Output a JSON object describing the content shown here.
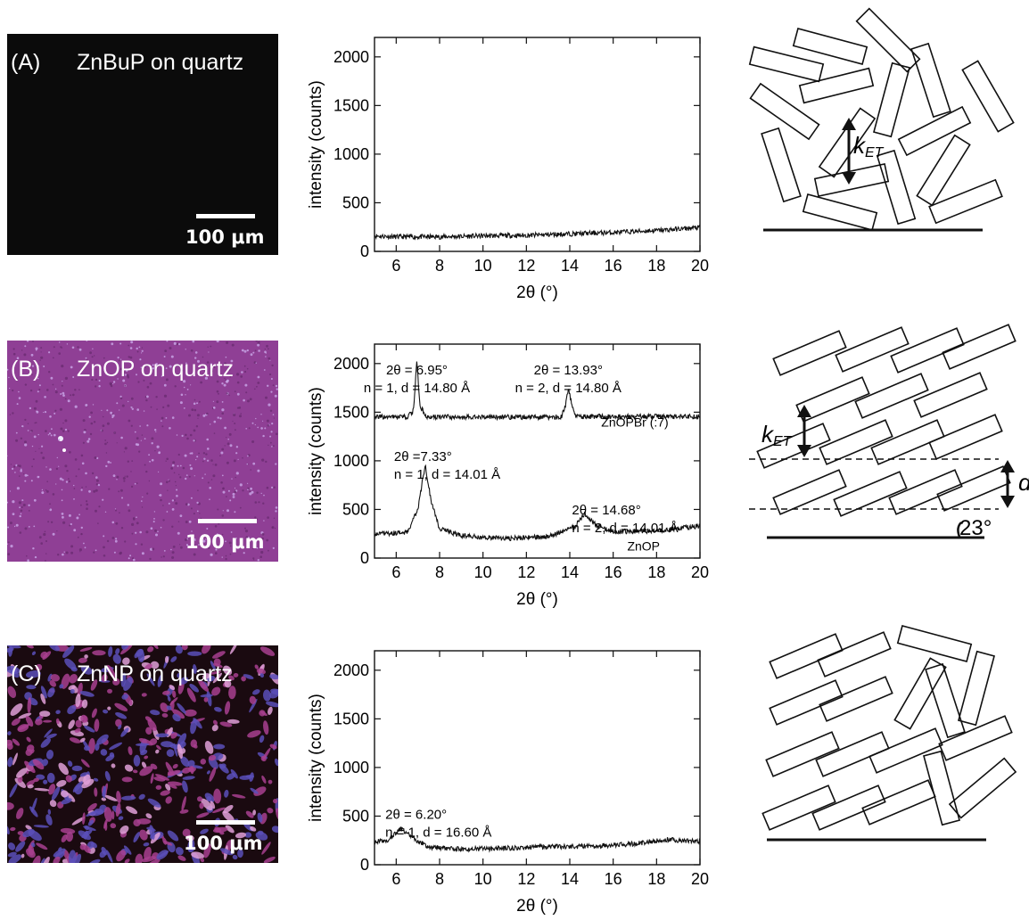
{
  "panels": [
    {
      "label": "(A)",
      "title": "ZnBuP on quartz",
      "scale_bar": "100 μm",
      "image_background": "#0b0b0b",
      "schematic_label": "kET"
    },
    {
      "label": "(B)",
      "title": "ZnOP on quartz",
      "scale_bar": "100 μm",
      "image_background": "#8f3f95",
      "schematic_label": "kET",
      "schematic_d_label": "d",
      "schematic_angle_label": "23°"
    },
    {
      "label": "(C)",
      "title": "ZnNP on quartz",
      "scale_bar": "100 μm",
      "image_background": "#1a0a10",
      "schematic_label": null
    }
  ],
  "chart_data": [
    {
      "type": "line",
      "xlabel": "2θ (°)",
      "ylabel": "intensity (counts)",
      "xlim": [
        5,
        20
      ],
      "ylim": [
        0,
        2200
      ],
      "x_ticks": [
        6,
        8,
        10,
        12,
        14,
        16,
        18,
        20
      ],
      "y_ticks": [
        0,
        500,
        1000,
        1500,
        2000
      ],
      "series": [
        {
          "points": [
            [
              5,
              160
            ],
            [
              6,
              150
            ],
            [
              8,
              150
            ],
            [
              10,
              160
            ],
            [
              12,
              165
            ],
            [
              14,
              180
            ],
            [
              16,
              195
            ],
            [
              18,
              215
            ],
            [
              20,
              245
            ]
          ]
        }
      ],
      "annotations": []
    },
    {
      "type": "line",
      "xlabel": "2θ (°)",
      "ylabel": "intensity (counts)",
      "xlim": [
        5,
        20
      ],
      "ylim": [
        0,
        2200
      ],
      "x_ticks": [
        6,
        8,
        10,
        12,
        14,
        16,
        18,
        20
      ],
      "y_ticks": [
        0,
        500,
        1000,
        1500,
        2000
      ],
      "series": [
        {
          "name": "ZnOPBr (:7)",
          "points": [
            [
              5,
              1450
            ],
            [
              6.5,
              1450
            ],
            [
              6.8,
              1520
            ],
            [
              6.95,
              2010
            ],
            [
              7.1,
              1560
            ],
            [
              7.4,
              1450
            ],
            [
              13.6,
              1450
            ],
            [
              13.8,
              1560
            ],
            [
              13.93,
              1750
            ],
            [
              14.1,
              1560
            ],
            [
              14.3,
              1455
            ],
            [
              20,
              1455
            ]
          ]
        },
        {
          "name": "ZnOP",
          "points": [
            [
              5,
              250
            ],
            [
              6.5,
              260
            ],
            [
              7.0,
              500
            ],
            [
              7.33,
              960
            ],
            [
              7.6,
              600
            ],
            [
              8.0,
              300
            ],
            [
              9,
              230
            ],
            [
              11,
              200
            ],
            [
              13,
              220
            ],
            [
              14.2,
              320
            ],
            [
              14.68,
              450
            ],
            [
              15.2,
              340
            ],
            [
              16,
              270
            ],
            [
              18,
              280
            ],
            [
              20,
              330
            ]
          ]
        }
      ],
      "annotations": [
        {
          "line1": "2θ = 6.95°",
          "line2": "n = 1, d = 14.80 Å"
        },
        {
          "line1": "2θ = 13.93°",
          "line2": "n = 2, d = 14.80 Å"
        },
        {
          "line1": "2θ =7.33°",
          "line2": "n = 1, d = 14.01 Å"
        },
        {
          "line1": "2θ = 14.68°",
          "line2": "n = 2, d = 14.01 Å"
        }
      ],
      "series_labels": [
        "ZnOPBr (:7)",
        "ZnOP"
      ]
    },
    {
      "type": "line",
      "xlabel": "2θ (°)",
      "ylabel": "intensity (counts)",
      "xlim": [
        5,
        20
      ],
      "ylim": [
        0,
        2200
      ],
      "x_ticks": [
        6,
        8,
        10,
        12,
        14,
        16,
        18,
        20
      ],
      "y_ticks": [
        0,
        500,
        1000,
        1500,
        2000
      ],
      "series": [
        {
          "points": [
            [
              5,
              230
            ],
            [
              5.6,
              250
            ],
            [
              6.2,
              370
            ],
            [
              6.8,
              270
            ],
            [
              7.5,
              180
            ],
            [
              9,
              160
            ],
            [
              11,
              170
            ],
            [
              13,
              185
            ],
            [
              15,
              190
            ],
            [
              17,
              215
            ],
            [
              18.5,
              260
            ],
            [
              20,
              240
            ]
          ]
        }
      ],
      "annotations": [
        {
          "line1": "2θ = 6.20°",
          "line2": "n = 1, d = 16.60 Å"
        }
      ]
    }
  ]
}
